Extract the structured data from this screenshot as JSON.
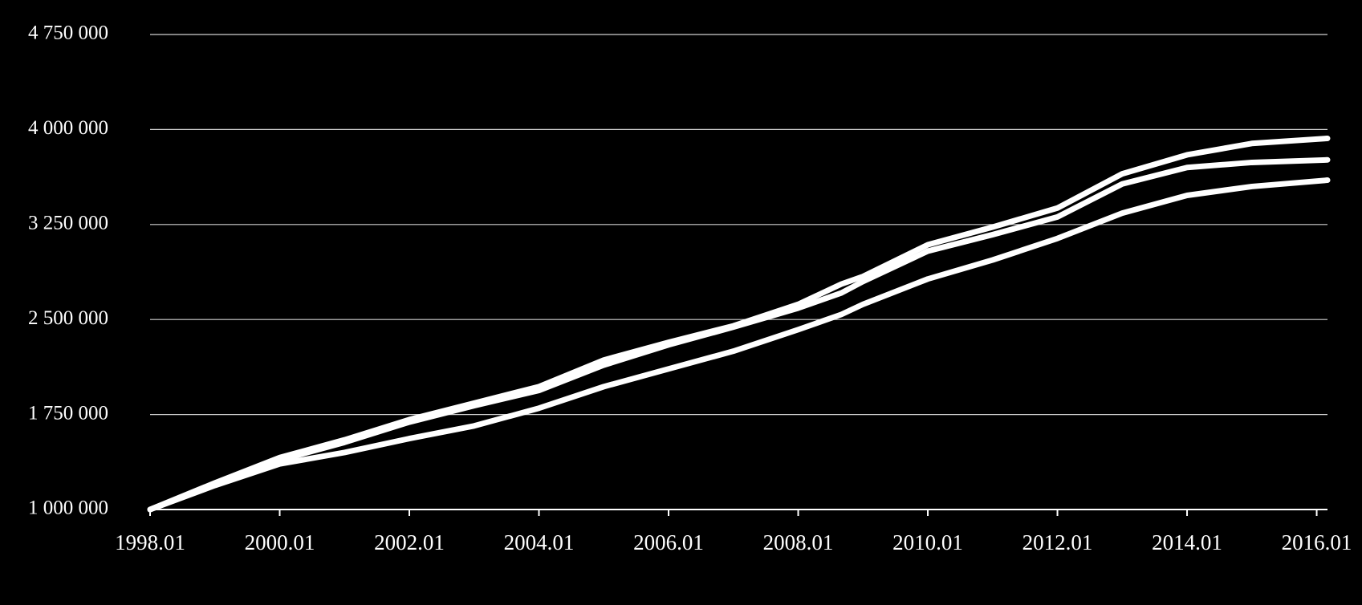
{
  "chart_data": {
    "type": "line",
    "x": [
      "1998.01",
      "1999.01",
      "2000.01",
      "2001.01",
      "2002.01",
      "2003.01",
      "2004.01",
      "2005.01",
      "2006.01",
      "2007.01",
      "2008.01",
      "2008.09",
      "2009.01",
      "2010.01",
      "2011.01",
      "2012.01",
      "2013.01",
      "2014.01",
      "2015.01",
      "2016.03"
    ],
    "series": [
      {
        "color": "#ffffff",
        "values": [
          1000000,
          1210000,
          1410000,
          1550000,
          1710000,
          1840000,
          1970000,
          2180000,
          2320000,
          2450000,
          2620000,
          2780000,
          2840000,
          3090000,
          3230000,
          3380000,
          3650000,
          3800000,
          3890000,
          3930000
        ]
      },
      {
        "color": "#ffffff",
        "values": [
          1000000,
          1200000,
          1390000,
          1530000,
          1690000,
          1820000,
          1940000,
          2140000,
          2300000,
          2440000,
          2590000,
          2710000,
          2800000,
          3040000,
          3170000,
          3310000,
          3570000,
          3700000,
          3740000,
          3760000
        ]
      },
      {
        "color": "#ffffff",
        "values": [
          1000000,
          1190000,
          1360000,
          1450000,
          1560000,
          1660000,
          1800000,
          1970000,
          2110000,
          2250000,
          2420000,
          2540000,
          2620000,
          2820000,
          2970000,
          3140000,
          3340000,
          3480000,
          3550000,
          3600000
        ]
      }
    ],
    "xlim": [
      "1998.01",
      "2016.03"
    ],
    "xticks": [
      "1998.01",
      "2000.01",
      "2002.01",
      "2004.01",
      "2006.01",
      "2008.01",
      "2010.01",
      "2012.01",
      "2014.01",
      "2016.01"
    ],
    "ylim": [
      1000000,
      4750000
    ],
    "yticks": [
      {
        "value": 1000000,
        "label": "1 000 000"
      },
      {
        "value": 1750000,
        "label": "1 750 000"
      },
      {
        "value": 2500000,
        "label": "2 500 000"
      },
      {
        "value": 3250000,
        "label": "3 250 000"
      },
      {
        "value": 4000000,
        "label": "4 000 000"
      },
      {
        "value": 4750000,
        "label": "4 750 000"
      }
    ],
    "grid": true
  }
}
